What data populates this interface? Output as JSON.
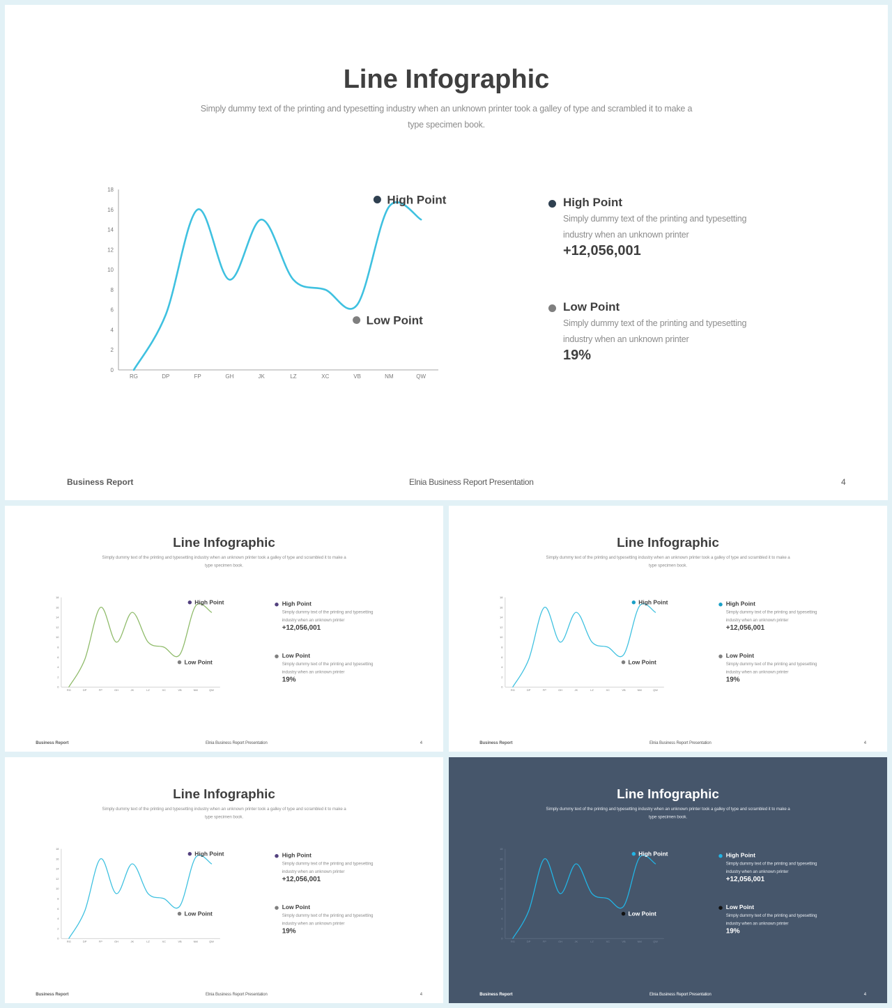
{
  "slides": [
    {
      "title": "Line Infographic",
      "subtitle": "Simply dummy text  of the printing and typesetting industry when an unknown printer took a galley of type  and scrambled it to make a type specimen book.",
      "high": {
        "label": "High Point",
        "description": "Simply dummy text  of the printing and typesetting industry when an unknown printer",
        "value": "+12,056,001"
      },
      "low": {
        "label": "Low Point",
        "description": "Simply dummy text  of the printing and typesetting industry when an unknown printer",
        "value": "19%"
      },
      "footer": {
        "left": "Business Report",
        "center": "Elnia Business Report Presentation",
        "page": "4"
      }
    },
    {
      "title": "Line Infographic",
      "subtitle": "Simply dummy text  of the printing and typesetting industry when an unknown printer took a galley of type  and scrambled it to make a type specimen book.",
      "high": {
        "label": "High Point",
        "description": "Simply dummy text  of the printing and typesetting industry when an unknown printer",
        "value": "+12,056,001"
      },
      "low": {
        "label": "Low Point",
        "description": "Simply dummy text  of the printing and typesetting industry when an unknown printer",
        "value": "19%"
      },
      "footer": {
        "left": "Business Report",
        "center": "Elnia Business Report Presentation",
        "page": "4"
      }
    },
    {
      "title": "Line Infographic",
      "subtitle": "Simply dummy text  of the printing and typesetting industry when an unknown printer took a galley of type  and scrambled it to make a type specimen book.",
      "high": {
        "label": "High Point",
        "description": "Simply dummy text  of the printing and typesetting industry when an unknown printer",
        "value": "+12,056,001"
      },
      "low": {
        "label": "Low Point",
        "description": "Simply dummy text  of the printing and typesetting industry when an unknown printer",
        "value": "19%"
      },
      "footer": {
        "left": "Business Report",
        "center": "Elnia Business Report Presentation",
        "page": "4"
      }
    },
    {
      "title": "Line Infographic",
      "subtitle": "Simply dummy text  of the printing and typesetting industry when an unknown printer took a galley of type  and scrambled it to make a type specimen book.",
      "high": {
        "label": "High Point",
        "description": "Simply dummy text  of the printing and typesetting industry when an unknown printer",
        "value": "+12,056,001"
      },
      "low": {
        "label": "Low Point",
        "description": "Simply dummy text  of the printing and typesetting industry when an unknown printer",
        "value": "19%"
      },
      "footer": {
        "left": "Business Report",
        "center": "Elnia Business Report Presentation",
        "page": "4"
      }
    },
    {
      "title": "Line Infographic",
      "subtitle": "Simply dummy text  of the printing and typesetting industry when an unknown printer took a galley of type  and scrambled it to make a type specimen book.",
      "high": {
        "label": "High Point",
        "description": "Simply dummy text  of the printing and typesetting industry when an unknown printer",
        "value": "+12,056,001"
      },
      "low": {
        "label": "Low Point",
        "description": "Simply dummy text  of the printing and typesetting industry when an unknown printer",
        "value": "19%"
      },
      "footer": {
        "left": "Business Report",
        "center": "Elnia Business Report Presentation",
        "page": "4"
      }
    }
  ],
  "themes": [
    {
      "background": "#ffffff",
      "line_color": "#3fc1e0",
      "high_dot": "#2f4050",
      "low_dot": "#7f7f7f",
      "axis_color": "#a6a6a6"
    },
    {
      "background": "#ffffff",
      "line_color": "#8fbb6a",
      "high_dot": "#52407e",
      "low_dot": "#7f7f7f",
      "axis_color": "#a6a6a6"
    },
    {
      "background": "#ffffff",
      "line_color": "#3fc1e0",
      "high_dot": "#1aa0c7",
      "low_dot": "#7f7f7f",
      "axis_color": "#a6a6a6"
    },
    {
      "background": "#ffffff",
      "line_color": "#3fc1e0",
      "high_dot": "#52407e",
      "low_dot": "#7f7f7f",
      "axis_color": "#a6a6a6"
    },
    {
      "background": "#46566b",
      "line_color": "#22b5e6",
      "high_dot": "#22b5e6",
      "low_dot": "#111111",
      "axis_color": "#6f7d92"
    }
  ],
  "chart_data": [
    {
      "type": "line",
      "categories": [
        "RG",
        "DP",
        "FP",
        "GH",
        "JK",
        "LZ",
        "XC",
        "VB",
        "NM",
        "QW"
      ],
      "values": [
        0,
        5.5,
        16,
        9,
        15,
        9,
        8,
        6.5,
        16.3,
        15
      ],
      "ylim": [
        0,
        18
      ],
      "yticks": [
        0,
        2,
        4,
        6,
        8,
        10,
        12,
        14,
        16,
        18
      ],
      "annotations": [
        {
          "text": "High Point",
          "category": "NM"
        },
        {
          "text": "Low Point",
          "category": "VB"
        }
      ]
    },
    {
      "type": "line",
      "categories": [
        "RG",
        "DP",
        "FP",
        "GH",
        "JK",
        "LZ",
        "XC",
        "VB",
        "NM",
        "QW"
      ],
      "values": [
        0,
        5.5,
        16,
        9,
        15,
        9,
        8,
        6.5,
        16.3,
        15
      ],
      "ylim": [
        0,
        18
      ],
      "yticks": [
        0,
        2,
        4,
        6,
        8,
        10,
        12,
        14,
        16,
        18
      ],
      "annotations": [
        {
          "text": "High Point",
          "category": "NM"
        },
        {
          "text": "Low Point",
          "category": "VB"
        }
      ]
    },
    {
      "type": "line",
      "categories": [
        "RG",
        "DP",
        "FP",
        "GH",
        "JK",
        "LZ",
        "XC",
        "VB",
        "NM",
        "QW"
      ],
      "values": [
        0,
        5.5,
        16,
        9,
        15,
        9,
        8,
        6.5,
        16.3,
        15
      ],
      "ylim": [
        0,
        18
      ],
      "yticks": [
        0,
        2,
        4,
        6,
        8,
        10,
        12,
        14,
        16,
        18
      ],
      "annotations": [
        {
          "text": "High Point",
          "category": "NM"
        },
        {
          "text": "Low Point",
          "category": "VB"
        }
      ]
    },
    {
      "type": "line",
      "categories": [
        "RG",
        "DP",
        "FP",
        "GH",
        "JK",
        "LZ",
        "XC",
        "VB",
        "NM",
        "QW"
      ],
      "values": [
        0,
        5.5,
        16,
        9,
        15,
        9,
        8,
        6.5,
        16.3,
        15
      ],
      "ylim": [
        0,
        18
      ],
      "yticks": [
        0,
        2,
        4,
        6,
        8,
        10,
        12,
        14,
        16,
        18
      ],
      "annotations": [
        {
          "text": "High Point",
          "category": "NM"
        },
        {
          "text": "Low Point",
          "category": "VB"
        }
      ]
    },
    {
      "type": "line",
      "categories": [
        "RG",
        "DP",
        "FP",
        "GH",
        "JK",
        "LZ",
        "XC",
        "VB",
        "NM",
        "QW"
      ],
      "values": [
        0,
        5.5,
        16,
        9,
        15,
        9,
        8,
        6.5,
        16.3,
        15
      ],
      "ylim": [
        0,
        18
      ],
      "yticks": [
        0,
        2,
        4,
        6,
        8,
        10,
        12,
        14,
        16,
        18
      ],
      "annotations": [
        {
          "text": "High Point",
          "category": "NM"
        },
        {
          "text": "Low Point",
          "category": "VB"
        }
      ]
    }
  ]
}
